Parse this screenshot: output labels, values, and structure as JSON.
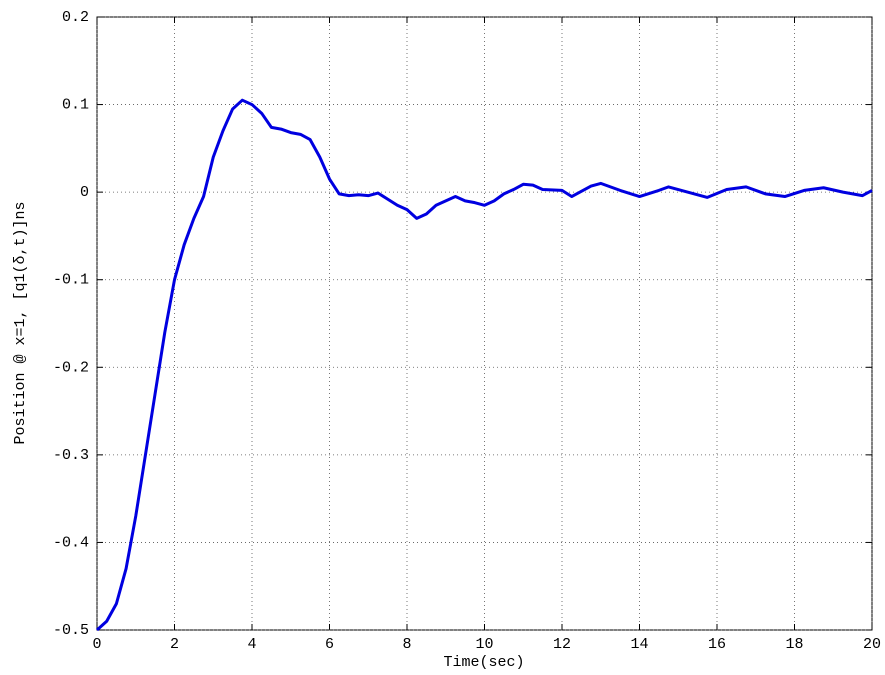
{
  "chart_data": {
    "type": "line",
    "xlabel": "Time(sec)",
    "ylabel": "Position @  x=1,  [q1(δ,t)]ns",
    "x": [
      0,
      0.25,
      0.5,
      0.75,
      1,
      1.25,
      1.5,
      1.75,
      2,
      2.25,
      2.5,
      2.75,
      3,
      3.25,
      3.5,
      3.75,
      4,
      4.25,
      4.5,
      4.75,
      5,
      5.25,
      5.5,
      5.75,
      6,
      6.25,
      6.5,
      6.75,
      7,
      7.25,
      7.5,
      7.75,
      8,
      8.25,
      8.5,
      8.75,
      9,
      9.25,
      9.5,
      9.75,
      10,
      10.25,
      10.5,
      10.75,
      11,
      11.25,
      11.5,
      12,
      12.25,
      12.75,
      13,
      13.5,
      14,
      14.5,
      14.75,
      15.25,
      15.75,
      16.25,
      16.75,
      17.25,
      17.75,
      18.25,
      18.75,
      19.25,
      19.75,
      20
    ],
    "series": [
      {
        "color": "#0000e0",
        "values": [
          -0.5,
          -0.49,
          -0.47,
          -0.43,
          -0.37,
          -0.3,
          -0.23,
          -0.16,
          -0.1,
          -0.06,
          -0.03,
          -0.005,
          0.04,
          0.07,
          0.095,
          0.105,
          0.1,
          0.09,
          0.074,
          0.072,
          0.068,
          0.066,
          0.06,
          0.04,
          0.015,
          -0.002,
          -0.004,
          -0.003,
          -0.004,
          -0.001,
          -0.008,
          -0.015,
          -0.02,
          -0.03,
          -0.025,
          -0.015,
          -0.01,
          -0.005,
          -0.01,
          -0.012,
          -0.015,
          -0.01,
          -0.002,
          0.003,
          0.009,
          0.008,
          0.003,
          0.002,
          -0.005,
          0.007,
          0.01,
          0.002,
          -0.005,
          0.002,
          0.006,
          0,
          -0.006,
          0.003,
          0.006,
          -0.002,
          -0.005,
          0.002,
          0.005,
          0,
          -0.004,
          0.002
        ]
      }
    ],
    "xlim": [
      0,
      20
    ],
    "xticks": [
      0,
      2,
      4,
      6,
      8,
      10,
      12,
      14,
      16,
      18,
      20
    ],
    "ylim": [
      -0.5,
      0.2
    ],
    "yticks": [
      -0.5,
      -0.4,
      -0.3,
      -0.2,
      -0.1,
      0,
      0.1,
      0.2
    ],
    "grid": true
  }
}
